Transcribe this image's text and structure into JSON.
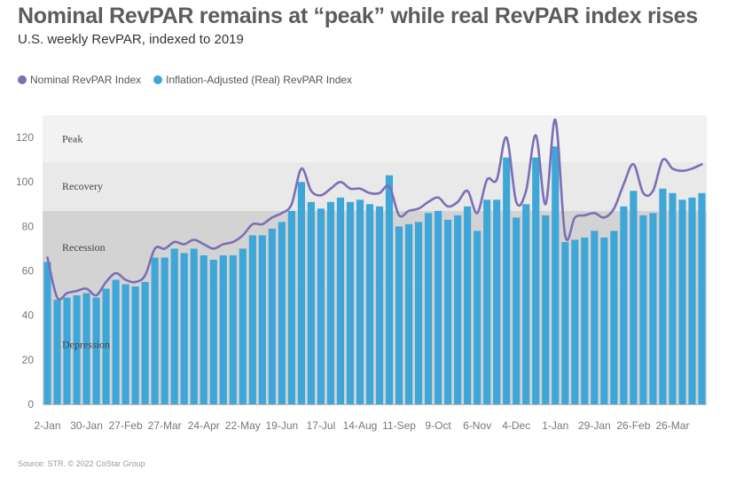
{
  "header": {
    "title": "Nominal RevPAR remains at “peak” while real RevPAR index rises",
    "subtitle": "U.S. weekly RevPAR, indexed to 2019"
  },
  "legend": {
    "nominal_label": "Nominal RevPAR Index",
    "real_label": "Inflation-Adjusted (Real) RevPAR Index"
  },
  "source": "Source: STR. © 2022 CoStar Group",
  "colors": {
    "nominal_line": "#7b6fb6",
    "real_bar": "#3fa6d8",
    "band_peak": "#f2f2f2",
    "band_recovery": "#e9e9e9",
    "band_recession": "#d3d3d3"
  },
  "chart_data": {
    "type": "bar",
    "title": "Nominal RevPAR remains at “peak” while real RevPAR index rises",
    "subtitle": "U.S. weekly RevPAR, indexed to 2019",
    "xlabel": "",
    "ylabel": "",
    "ylim": [
      0,
      130
    ],
    "yticks": [
      0,
      20,
      40,
      60,
      80,
      100,
      120
    ],
    "grid": false,
    "legend_position": "top-left",
    "x_tick_labels": [
      "2-Jan",
      "30-Jan",
      "27-Feb",
      "27-Mar",
      "24-Apr",
      "22-May",
      "19-Jun",
      "17-Jul",
      "14-Aug",
      "11-Sep",
      "9-Oct",
      "6-Nov",
      "4-Dec",
      "1-Jan",
      "29-Jan",
      "26-Feb",
      "26-Mar"
    ],
    "x_tick_every": 4,
    "bands": [
      {
        "label": "Depression",
        "from": 0,
        "to": 54
      },
      {
        "label": "Recession",
        "from": 54,
        "to": 87
      },
      {
        "label": "Recovery",
        "from": 87,
        "to": 109
      },
      {
        "label": "Peak",
        "from": 109,
        "to": 130
      }
    ],
    "series": [
      {
        "name": "Inflation-Adjusted (Real) RevPAR Index",
        "type": "bar",
        "values": [
          64,
          47,
          48,
          49,
          50,
          48,
          52,
          56,
          54,
          53,
          55,
          66,
          66,
          70,
          68,
          70,
          67,
          65,
          67,
          67,
          70,
          76,
          76,
          79,
          82,
          87,
          100,
          91,
          88,
          91,
          93,
          91,
          92,
          90,
          89,
          103,
          80,
          81,
          82,
          86,
          87,
          83,
          85,
          89,
          78,
          92,
          92,
          111,
          84,
          90,
          111,
          85,
          116,
          73,
          74,
          75,
          78,
          75,
          78,
          89,
          96,
          85,
          86,
          97,
          95,
          92,
          93,
          95
        ]
      },
      {
        "name": "Nominal RevPAR Index",
        "type": "line",
        "values": [
          66,
          48,
          50,
          51,
          52,
          49,
          55,
          59,
          56,
          55,
          58,
          70,
          70,
          73,
          72,
          74,
          72,
          70,
          72,
          73,
          76,
          81,
          81,
          84,
          86,
          90,
          106,
          96,
          94,
          97,
          100,
          97,
          97,
          95,
          95,
          98,
          85,
          87,
          88,
          91,
          93,
          89,
          91,
          96,
          86,
          101,
          101,
          120,
          91,
          96,
          121,
          90,
          128,
          76,
          84,
          85,
          86,
          84,
          88,
          99,
          108,
          95,
          96,
          110,
          106,
          105,
          106,
          108
        ]
      }
    ]
  }
}
